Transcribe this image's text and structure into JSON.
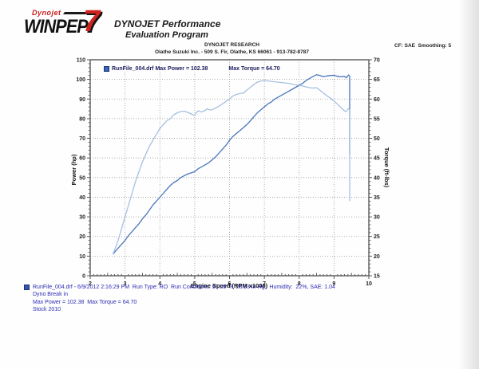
{
  "header": {
    "logo": {
      "brand_small": "Dynojet",
      "brand_main": "WINPEP",
      "brand_number": "7"
    },
    "app_title_line1": "DYNOJET Performance",
    "app_title_line2": "Evaluation Program",
    "shop_name": "DYNOJET RESEARCH",
    "shop_address": "Olathe Suzuki Inc. - 509 S. Fir,  Olathe, KS  66061 - 913-782-8787",
    "correction_info": "CF: SAE  Smoothing: 5"
  },
  "chart_data": {
    "type": "line",
    "xlabel": "Engine Speed (RPM x1000)",
    "ylabel_left": "Power (hp)",
    "ylabel_right": "Torque (ft-lbs)",
    "xlim": [
      2,
      10
    ],
    "ylim_left": [
      0,
      110
    ],
    "ylim_right": [
      15,
      70
    ],
    "x_ticks": [
      2,
      3,
      4,
      5,
      6,
      7,
      8,
      9,
      10
    ],
    "y_ticks_left": [
      0,
      10,
      20,
      30,
      40,
      50,
      60,
      70,
      80,
      90,
      100,
      110
    ],
    "y_ticks_right": [
      15,
      20,
      25,
      30,
      35,
      40,
      45,
      50,
      55,
      60,
      65,
      70
    ],
    "grid": "dotted",
    "legend": {
      "marker_color": "#3a66b4",
      "run_label": "RunFile_004.drf Max Power = 102.38",
      "torque_label": "Max Torque = 64.70"
    },
    "max_power": 102.38,
    "max_torque": 64.7,
    "series": [
      {
        "name": "Power (hp)",
        "axis": "left",
        "color": "#4a76bc",
        "points": [
          [
            2.65,
            11
          ],
          [
            2.7,
            12
          ],
          [
            2.8,
            14
          ],
          [
            2.9,
            16
          ],
          [
            3.0,
            18
          ],
          [
            3.1,
            20.5
          ],
          [
            3.2,
            22.5
          ],
          [
            3.3,
            24.5
          ],
          [
            3.4,
            26.5
          ],
          [
            3.5,
            29
          ],
          [
            3.6,
            31
          ],
          [
            3.7,
            33.5
          ],
          [
            3.8,
            36
          ],
          [
            3.9,
            38
          ],
          [
            4.0,
            40
          ],
          [
            4.1,
            42
          ],
          [
            4.2,
            44
          ],
          [
            4.3,
            46
          ],
          [
            4.4,
            47.5
          ],
          [
            4.5,
            48.5
          ],
          [
            4.6,
            50
          ],
          [
            4.7,
            51
          ],
          [
            4.8,
            51.8
          ],
          [
            4.9,
            52.4
          ],
          [
            5.0,
            53
          ],
          [
            5.1,
            54.5
          ],
          [
            5.2,
            55.5
          ],
          [
            5.3,
            56.5
          ],
          [
            5.4,
            57.5
          ],
          [
            5.5,
            59
          ],
          [
            5.6,
            60.5
          ],
          [
            5.7,
            62.5
          ],
          [
            5.8,
            64.5
          ],
          [
            5.9,
            66.5
          ],
          [
            6.0,
            69
          ],
          [
            6.1,
            71
          ],
          [
            6.2,
            72.5
          ],
          [
            6.3,
            74
          ],
          [
            6.4,
            75.5
          ],
          [
            6.5,
            77
          ],
          [
            6.6,
            79
          ],
          [
            6.7,
            81
          ],
          [
            6.8,
            83
          ],
          [
            6.9,
            84.5
          ],
          [
            7.0,
            86
          ],
          [
            7.1,
            87.5
          ],
          [
            7.2,
            88.5
          ],
          [
            7.3,
            90
          ],
          [
            7.4,
            91
          ],
          [
            7.5,
            92
          ],
          [
            7.6,
            93
          ],
          [
            7.7,
            94
          ],
          [
            7.8,
            95
          ],
          [
            7.9,
            96
          ],
          [
            8.0,
            97
          ],
          [
            8.1,
            98
          ],
          [
            8.2,
            99.5
          ],
          [
            8.3,
            100.5
          ],
          [
            8.4,
            101.5
          ],
          [
            8.5,
            102.4
          ],
          [
            8.6,
            102
          ],
          [
            8.7,
            101.4
          ],
          [
            8.8,
            101.8
          ],
          [
            8.9,
            102
          ],
          [
            9.0,
            102.1
          ],
          [
            9.1,
            101.6
          ],
          [
            9.2,
            101.3
          ],
          [
            9.3,
            101.6
          ],
          [
            9.35,
            100.8
          ],
          [
            9.42,
            102.3
          ],
          [
            9.45,
            101.5
          ],
          [
            9.45,
            62
          ]
        ]
      },
      {
        "name": "Torque (ft-lbs)",
        "axis": "right",
        "color": "#a6c0e2",
        "points": [
          [
            2.65,
            20.5
          ],
          [
            2.7,
            21.5
          ],
          [
            2.8,
            24
          ],
          [
            2.9,
            27
          ],
          [
            3.0,
            30
          ],
          [
            3.1,
            33
          ],
          [
            3.2,
            36
          ],
          [
            3.3,
            39
          ],
          [
            3.4,
            41.5
          ],
          [
            3.5,
            44
          ],
          [
            3.6,
            46
          ],
          [
            3.7,
            48
          ],
          [
            3.8,
            49.5
          ],
          [
            3.9,
            51
          ],
          [
            4.0,
            52.5
          ],
          [
            4.1,
            53.5
          ],
          [
            4.2,
            54.5
          ],
          [
            4.3,
            55
          ],
          [
            4.4,
            56
          ],
          [
            4.5,
            56.5
          ],
          [
            4.6,
            56.8
          ],
          [
            4.7,
            56.9
          ],
          [
            4.8,
            56.6
          ],
          [
            4.9,
            56.2
          ],
          [
            5.0,
            55.8
          ],
          [
            5.05,
            56.6
          ],
          [
            5.1,
            57
          ],
          [
            5.2,
            56.7
          ],
          [
            5.3,
            57.1
          ],
          [
            5.35,
            57.5
          ],
          [
            5.45,
            57.2
          ],
          [
            5.5,
            57.3
          ],
          [
            5.6,
            57.7
          ],
          [
            5.7,
            58.2
          ],
          [
            5.8,
            58.8
          ],
          [
            5.9,
            59.4
          ],
          [
            6.0,
            60
          ],
          [
            6.1,
            60.8
          ],
          [
            6.2,
            61.2
          ],
          [
            6.3,
            61.4
          ],
          [
            6.4,
            61.5
          ],
          [
            6.5,
            62.3
          ],
          [
            6.6,
            63
          ],
          [
            6.7,
            63.7
          ],
          [
            6.8,
            64.3
          ],
          [
            6.9,
            64.6
          ],
          [
            7.0,
            64.7
          ],
          [
            7.1,
            64.6
          ],
          [
            7.2,
            64.5
          ],
          [
            7.3,
            64.4
          ],
          [
            7.4,
            64.3
          ],
          [
            7.5,
            64.2
          ],
          [
            7.6,
            64.1
          ],
          [
            7.7,
            64
          ],
          [
            7.8,
            63.8
          ],
          [
            7.9,
            63.6
          ],
          [
            8.0,
            63.5
          ],
          [
            8.1,
            63.3
          ],
          [
            8.2,
            63.1
          ],
          [
            8.3,
            62.9
          ],
          [
            8.4,
            62.8
          ],
          [
            8.5,
            62.9
          ],
          [
            8.6,
            62.2
          ],
          [
            8.7,
            61.5
          ],
          [
            8.8,
            60.8
          ],
          [
            8.9,
            60.2
          ],
          [
            9.0,
            59.5
          ],
          [
            9.1,
            58.7
          ],
          [
            9.2,
            57.8
          ],
          [
            9.3,
            57
          ],
          [
            9.35,
            56.8
          ],
          [
            9.42,
            57.6
          ],
          [
            9.45,
            57.2
          ],
          [
            9.45,
            34
          ]
        ]
      }
    ]
  },
  "footer": {
    "line1": "RunFile_004.drf - 6/9/2012 2:16:29 PM  Run Type: RO  Run Conditions: 91.59° F, 28.93 in-Hg,  Humidity:  22%, SAE: 1.04",
    "line2": "Dyno Break in",
    "line3": "Max Power = 102.38  Max Torque = 64.70",
    "line4": "Stock 2010"
  }
}
